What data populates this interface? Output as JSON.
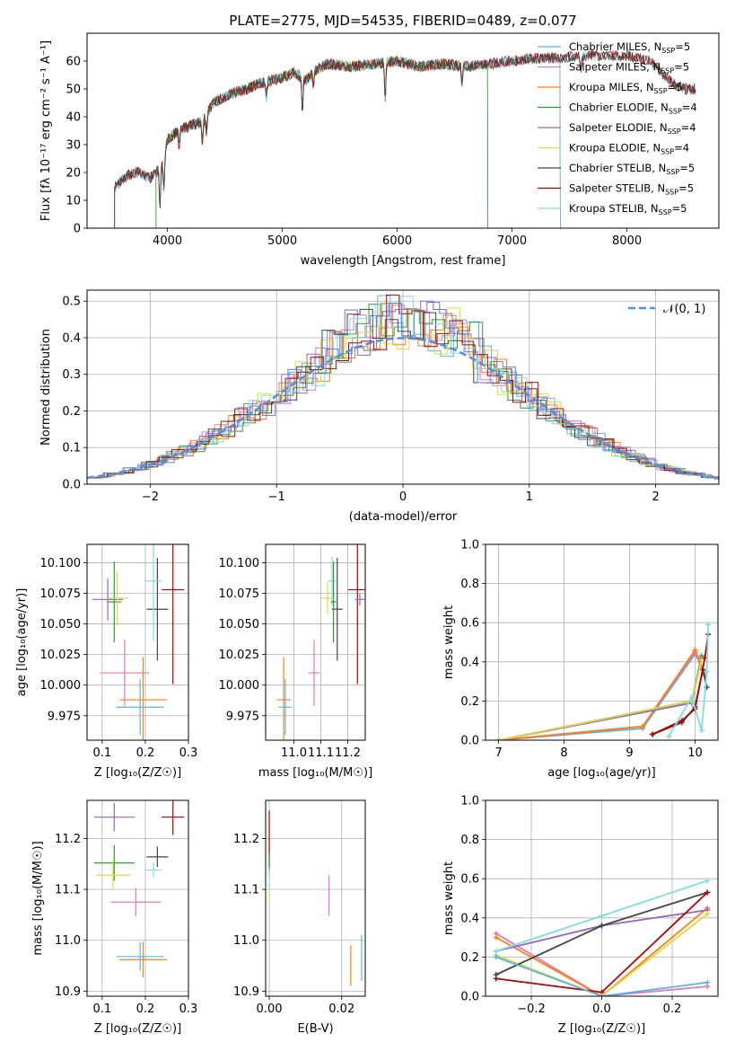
{
  "figure_title": "PLATE=2775, MJD=54535, FIBERID=0489, z=0.077",
  "colors": {
    "Chabrier MILES": "#56b4e9",
    "Salpeter MILES": "#e377c2",
    "Kroupa MILES": "#ff7f0e",
    "Chabrier ELODIE": "#2ca02c",
    "Salpeter ELODIE": "#9467bd",
    "Kroupa ELODIE": "#dbdb40",
    "Chabrier STELIB": "#444444",
    "Salpeter STELIB": "#b40000",
    "Kroupa STELIB": "#7fdde0",
    "extra_blue": "#5b7fd6",
    "normal_curve": "#5b8bd9"
  },
  "chart_data": [
    {
      "panel": "spectrum",
      "type": "line",
      "xlabel": "wavelength [Angstrom, rest frame]",
      "ylabel": "Flux [fλ 10⁻¹⁷ erg cm⁻² s⁻¹ A⁻¹]",
      "xlim": [
        3300,
        8800
      ],
      "ylim": [
        0,
        70
      ],
      "xticks": [
        4000,
        5000,
        6000,
        7000,
        8000
      ],
      "yticks": [
        0,
        10,
        20,
        30,
        40,
        50,
        60
      ],
      "legend": {
        "position": "upper-right",
        "entries": [
          {
            "model": "Chabrier MILES",
            "label": "Chabrier MILES, N",
            "sub": "SSP",
            "suffix": "=5"
          },
          {
            "model": "Salpeter MILES",
            "label": "Salpeter MILES, N",
            "sub": "SSP",
            "suffix": "=5"
          },
          {
            "model": "Kroupa MILES",
            "label": "Kroupa MILES, N",
            "sub": "SSP",
            "suffix": "=5"
          },
          {
            "model": "Chabrier ELODIE",
            "label": "Chabrier ELODIE, N",
            "sub": "SSP",
            "suffix": "=4"
          },
          {
            "model": "Salpeter ELODIE",
            "label": "Salpeter ELODIE, N",
            "sub": "SSP",
            "suffix": "=4"
          },
          {
            "model": "Kroupa ELODIE",
            "label": "Kroupa ELODIE, N",
            "sub": "SSP",
            "suffix": "=4"
          },
          {
            "model": "Chabrier STELIB",
            "label": "Chabrier STELIB, N",
            "sub": "SSP",
            "suffix": "=5"
          },
          {
            "model": "Salpeter STELIB",
            "label": "Salpeter STELIB, N",
            "sub": "SSP",
            "suffix": "=5"
          },
          {
            "model": "Kroupa STELIB",
            "label": "Kroupa STELIB, N",
            "sub": "SSP",
            "suffix": "=5"
          }
        ]
      },
      "continuum": {
        "x": [
          3500,
          3550,
          3650,
          3750,
          3850,
          3950,
          4000,
          4100,
          4200,
          4300,
          4400,
          4500,
          4600,
          4700,
          4800,
          4900,
          5000,
          5100,
          5200,
          5300,
          5400,
          5600,
          5800,
          6000,
          6200,
          6400,
          6600,
          6800,
          7000,
          7200,
          7400,
          7600,
          7800,
          8000,
          8200,
          8400,
          8500
        ],
        "y": [
          14,
          15,
          19,
          20,
          18,
          22,
          32,
          35,
          37,
          38,
          45,
          47,
          49,
          50,
          52,
          53,
          54,
          56,
          53,
          57,
          59,
          58,
          59,
          60,
          58,
          59,
          58,
          59,
          60,
          61,
          61,
          62,
          62,
          62,
          60,
          52,
          50
        ]
      },
      "model_x_ranges": [
        {
          "model": "Kroupa MILES",
          "x": [
            3540,
            7420
          ]
        },
        {
          "model": "Salpeter MILES",
          "x": [
            3540,
            7420
          ]
        },
        {
          "model": "Chabrier MILES",
          "x": [
            3540,
            7420
          ]
        },
        {
          "model": "Kroupa ELODIE",
          "x": [
            3900,
            6790
          ]
        },
        {
          "model": "Salpeter ELODIE",
          "x": [
            3900,
            6790
          ]
        },
        {
          "model": "Chabrier ELODIE",
          "x": [
            3900,
            6790
          ]
        },
        {
          "model": "Kroupa STELIB",
          "x": [
            3540,
            8600
          ]
        },
        {
          "model": "Salpeter STELIB",
          "x": [
            3540,
            8600
          ]
        },
        {
          "model": "Chabrier STELIB",
          "x": [
            3540,
            8600
          ]
        }
      ]
    },
    {
      "panel": "residuals",
      "type": "step",
      "xlabel": "(data-model)/error",
      "ylabel": "Normed distribution",
      "xlim": [
        -2.5,
        2.5
      ],
      "ylim": [
        0,
        0.53
      ],
      "xticks": [
        -2,
        -1,
        0,
        1,
        2
      ],
      "yticks": [
        0.0,
        0.1,
        0.2,
        0.3,
        0.4,
        0.5
      ],
      "bin_width": 0.1,
      "legend": {
        "position": "upper-right",
        "label": "𝒩(0, 1)"
      },
      "normal_curve": {
        "mean": 0,
        "sigma": 1
      }
    },
    {
      "panel": "age_vs_Z",
      "type": "errorbar",
      "xlabel": "Z [log₁₀(Z/Z☉)]",
      "ylabel": "age  [log₁₀(age/yr)]",
      "xlim": [
        0.065,
        0.3
      ],
      "ylim": [
        9.955,
        10.115
      ],
      "xticks": [
        0.1,
        0.2,
        0.3
      ],
      "yticks": [
        9.975,
        10.0,
        10.025,
        10.05,
        10.075,
        10.1
      ],
      "points": [
        {
          "model": "Salpeter STELIB",
          "x": 0.264,
          "y": 10.078,
          "xerr": 0.026,
          "yerr": 0.077
        },
        {
          "model": "Chabrier STELIB",
          "x": 0.228,
          "y": 10.062,
          "xerr": 0.025,
          "yerr": 0.042
        },
        {
          "model": "Kroupa STELIB",
          "x": 0.219,
          "y": 10.085,
          "xerr": 0.018,
          "yerr": 0.049
        },
        {
          "model": "Salpeter ELODIE",
          "x": 0.113,
          "y": 10.07,
          "xerr": 0.036,
          "yerr": 0.017
        },
        {
          "model": "Chabrier ELODIE",
          "x": 0.128,
          "y": 10.068,
          "xerr": 0.017,
          "yerr": 0.033
        },
        {
          "model": "Kroupa ELODIE",
          "x": 0.135,
          "y": 10.071,
          "xerr": 0.025,
          "yerr": 0.022
        },
        {
          "model": "Salpeter MILES",
          "x": 0.152,
          "y": 10.01,
          "xerr": 0.058,
          "yerr": 0.027
        },
        {
          "model": "Kroupa MILES",
          "x": 0.195,
          "y": 9.988,
          "xerr": 0.055,
          "yerr": 0.035
        },
        {
          "model": "Chabrier MILES",
          "x": 0.188,
          "y": 9.982,
          "xerr": 0.055,
          "yerr": 0.023
        }
      ]
    },
    {
      "panel": "age_vs_mass",
      "type": "errorbar",
      "xlabel": "mass [log₁₀(M/M☉)]",
      "ylabel": "",
      "xlim": [
        10.895,
        11.265
      ],
      "ylim": [
        9.955,
        10.115
      ],
      "xticks": [
        11.0,
        11.1,
        11.2
      ],
      "yticks": [
        9.975,
        10.0,
        10.025,
        10.05,
        10.075,
        10.1
      ],
      "points": [
        {
          "model": "Salpeter STELIB",
          "x": 11.236,
          "y": 10.078,
          "xerr": 0.035,
          "yerr": 0.077
        },
        {
          "model": "Chabrier STELIB",
          "x": 11.161,
          "y": 10.062,
          "xerr": 0.02,
          "yerr": 0.042
        },
        {
          "model": "Kroupa STELIB",
          "x": 11.142,
          "y": 10.085,
          "xerr": 0.015,
          "yerr": 0.02
        },
        {
          "model": "Salpeter ELODIE",
          "x": 11.245,
          "y": 10.07,
          "xerr": 0.018,
          "yerr": 0.005
        },
        {
          "model": "Chabrier ELODIE",
          "x": 11.147,
          "y": 10.068,
          "xerr": 0.01,
          "yerr": 0.033
        },
        {
          "model": "Kroupa ELODIE",
          "x": 11.125,
          "y": 10.071,
          "xerr": 0.022,
          "yerr": 0.013
        },
        {
          "model": "Salpeter MILES",
          "x": 11.075,
          "y": 10.01,
          "xerr": 0.022,
          "yerr": 0.027
        },
        {
          "model": "Kroupa MILES",
          "x": 10.962,
          "y": 9.988,
          "xerr": 0.025,
          "yerr": 0.035
        },
        {
          "model": "Chabrier MILES",
          "x": 10.968,
          "y": 9.982,
          "xerr": 0.025,
          "yerr": 0.023
        }
      ]
    },
    {
      "panel": "mass_weight_vs_age",
      "type": "line",
      "xlabel": "age  [log₁₀(age/yr)]",
      "ylabel": "mass weight",
      "xlim": [
        6.8,
        10.35
      ],
      "ylim": [
        0,
        1
      ],
      "xticks": [
        7,
        8,
        9,
        10
      ],
      "yticks": [
        0.0,
        0.2,
        0.4,
        0.6,
        0.8,
        1.0
      ],
      "series": [
        {
          "model": "Chabrier MILES",
          "x": [
            7.0,
            9.2,
            10.0,
            10.15
          ],
          "y": [
            0.0,
            0.06,
            0.44,
            0.35
          ]
        },
        {
          "model": "Salpeter MILES",
          "x": [
            7.0,
            9.2,
            10.0,
            10.15
          ],
          "y": [
            0.0,
            0.07,
            0.45,
            0.33
          ]
        },
        {
          "model": "Kroupa MILES",
          "x": [
            7.0,
            9.2,
            10.0,
            10.15
          ],
          "y": [
            0.0,
            0.07,
            0.46,
            0.34
          ]
        },
        {
          "model": "Chabrier ELODIE",
          "x": [
            7.0,
            9.95,
            10.1
          ],
          "y": [
            0.0,
            0.2,
            0.43
          ]
        },
        {
          "model": "Salpeter ELODIE",
          "x": [
            7.0,
            9.95,
            10.1
          ],
          "y": [
            0.0,
            0.19,
            0.42
          ]
        },
        {
          "model": "Kroupa ELODIE",
          "x": [
            7.0,
            9.95,
            10.1
          ],
          "y": [
            0.0,
            0.2,
            0.41
          ]
        },
        {
          "model": "Chabrier STELIB",
          "x": [
            9.35,
            9.8,
            10.0,
            10.12,
            10.18
          ],
          "y": [
            0.03,
            0.09,
            0.17,
            0.36,
            0.27
          ]
        },
        {
          "model": "Salpeter STELIB",
          "x": [
            9.35,
            9.8,
            10.0,
            10.15,
            10.2
          ],
          "y": [
            0.03,
            0.1,
            0.16,
            0.42,
            0.54
          ]
        },
        {
          "model": "Kroupa STELIB",
          "x": [
            9.6,
            9.95,
            10.1,
            10.18,
            10.2
          ],
          "y": [
            0.02,
            0.22,
            0.05,
            0.35,
            0.59
          ]
        }
      ]
    },
    {
      "panel": "mass_vs_Z",
      "type": "errorbar",
      "xlabel": "Z [log₁₀(Z/Z☉)]",
      "ylabel": "mass [log₁₀(M/M☉)]",
      "xlim": [
        0.065,
        0.3
      ],
      "ylim": [
        10.89,
        11.275
      ],
      "xticks": [
        0.1,
        0.2,
        0.3
      ],
      "yticks": [
        10.9,
        11.0,
        11.1,
        11.2
      ],
      "points": [
        {
          "model": "Salpeter STELIB",
          "x": 0.264,
          "y": 11.242,
          "xerr": 0.026,
          "yerr": 0.035
        },
        {
          "model": "Chabrier STELIB",
          "x": 0.228,
          "y": 11.164,
          "xerr": 0.025,
          "yerr": 0.02
        },
        {
          "model": "Kroupa STELIB",
          "x": 0.219,
          "y": 11.138,
          "xerr": 0.018,
          "yerr": 0.015
        },
        {
          "model": "Salpeter ELODIE",
          "x": 0.128,
          "y": 11.242,
          "xerr": 0.047,
          "yerr": 0.028
        },
        {
          "model": "Chabrier ELODIE",
          "x": 0.128,
          "y": 11.152,
          "xerr": 0.047,
          "yerr": 0.035
        },
        {
          "model": "Kroupa ELODIE",
          "x": 0.125,
          "y": 11.128,
          "xerr": 0.04,
          "yerr": 0.028
        },
        {
          "model": "Salpeter MILES",
          "x": 0.178,
          "y": 11.075,
          "xerr": 0.058,
          "yerr": 0.028
        },
        {
          "model": "Kroupa MILES",
          "x": 0.195,
          "y": 10.962,
          "xerr": 0.055,
          "yerr": 0.035
        },
        {
          "model": "Chabrier MILES",
          "x": 0.188,
          "y": 10.968,
          "xerr": 0.055,
          "yerr": 0.028
        }
      ]
    },
    {
      "panel": "mass_vs_EBV",
      "type": "errorbar",
      "xlabel": "E(B-V)",
      "ylabel": "",
      "xlim": [
        -0.001,
        0.0265
      ],
      "ylim": [
        10.89,
        11.275
      ],
      "xticks": [
        0.0,
        0.02
      ],
      "yticks": [
        10.9,
        11.0,
        11.1,
        11.2
      ],
      "points": [
        {
          "model": "Salpeter STELIB",
          "x": 0.0,
          "y": 11.2,
          "xerr": 0,
          "yerr": 0.055
        },
        {
          "model": "Chabrier ELODIE",
          "x": 0.0,
          "y": 11.15,
          "xerr": 0,
          "yerr": 0.02
        },
        {
          "model": "Kroupa ELODIE",
          "x": 0.0,
          "y": 11.09,
          "xerr": 0,
          "yerr": 0.02
        },
        {
          "model": "Kroupa STELIB",
          "x": 0.0,
          "y": 11.12,
          "xerr": 0,
          "yerr": 0.02
        },
        {
          "model": "Salpeter MILES",
          "x": 0.0165,
          "y": 11.088,
          "xerr": 0,
          "yerr": 0.04
        },
        {
          "model": "Kroupa MILES",
          "x": 0.0225,
          "y": 10.95,
          "xerr": 0,
          "yerr": 0.04
        },
        {
          "model": "Chabrier MILES",
          "x": 0.0255,
          "y": 10.965,
          "xerr": 0,
          "yerr": 0.045
        }
      ]
    },
    {
      "panel": "mass_weight_vs_Z",
      "type": "line",
      "xlabel": "Z [log₁₀(Z/Z☉)]",
      "ylabel": "mass weight",
      "xlim": [
        -0.33,
        0.33
      ],
      "ylim": [
        0,
        1
      ],
      "xticks": [
        -0.2,
        0.0,
        0.2
      ],
      "yticks": [
        0.0,
        0.2,
        0.4,
        0.6,
        0.8,
        1.0
      ],
      "series": [
        {
          "model": "Salpeter MILES",
          "x": [
            -0.3,
            0.0,
            0.3
          ],
          "y": [
            0.32,
            0.0,
            0.05
          ]
        },
        {
          "model": "Kroupa MILES",
          "x": [
            -0.3,
            0.0,
            0.3
          ],
          "y": [
            0.3,
            0.0,
            0.45
          ]
        },
        {
          "model": "Salpeter ELODIE",
          "x": [
            -0.3,
            0.0,
            0.3
          ],
          "y": [
            0.23,
            0.36,
            0.44
          ]
        },
        {
          "model": "Kroupa ELODIE",
          "x": [
            -0.3,
            0.0,
            0.3
          ],
          "y": [
            0.21,
            0.0,
            0.42
          ]
        },
        {
          "model": "Chabrier STELIB",
          "x": [
            -0.3,
            0.0,
            0.3
          ],
          "y": [
            0.11,
            0.36,
            0.53
          ]
        },
        {
          "model": "Salpeter STELIB",
          "x": [
            -0.3,
            0.0,
            0.3
          ],
          "y": [
            0.09,
            0.02,
            0.53
          ]
        },
        {
          "model": "Kroupa STELIB",
          "x": [
            -0.3,
            0.0,
            0.3
          ],
          "y": [
            0.23,
            0.41,
            0.59
          ]
        },
        {
          "model": "Chabrier MILES",
          "x": [
            -0.3,
            0.0,
            0.3
          ],
          "y": [
            0.2,
            0.0,
            0.07
          ]
        }
      ]
    }
  ]
}
